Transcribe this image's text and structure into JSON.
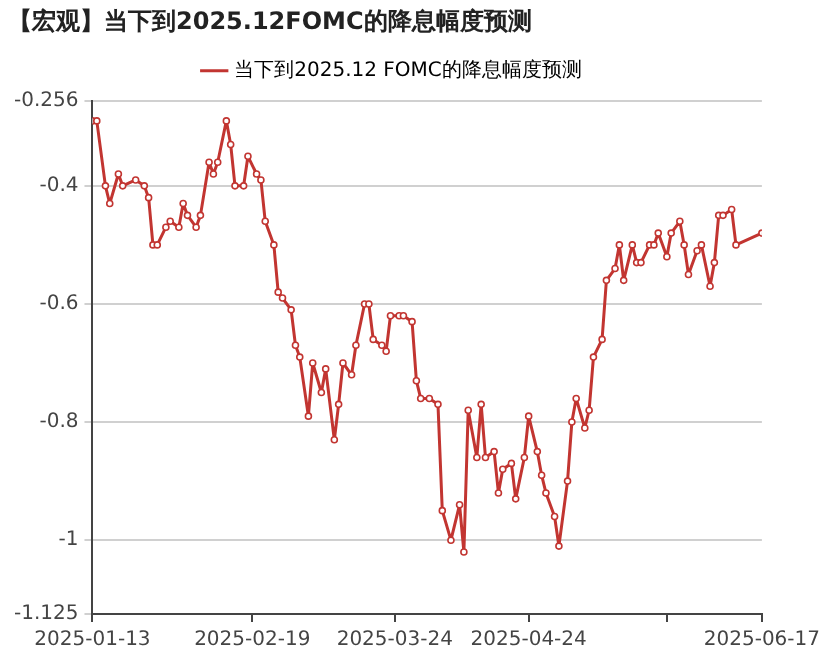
{
  "chart_data": {
    "type": "line",
    "title": "【宏观】当下到2025.12FOMC的降息幅度预测",
    "x": [
      "2025-01-13",
      "2025-01-14",
      "2025-01-16",
      "2025-01-17",
      "2025-01-19",
      "2025-01-20",
      "2025-01-23",
      "2025-01-25",
      "2025-01-26",
      "2025-01-27",
      "2025-01-28",
      "2025-01-30",
      "2025-01-31",
      "2025-02-02",
      "2025-02-03",
      "2025-02-04",
      "2025-02-06",
      "2025-02-07",
      "2025-02-09",
      "2025-02-10",
      "2025-02-11",
      "2025-02-13",
      "2025-02-14",
      "2025-02-15",
      "2025-02-17",
      "2025-02-18",
      "2025-02-20",
      "2025-02-21",
      "2025-02-22",
      "2025-02-24",
      "2025-02-25",
      "2025-02-26",
      "2025-02-28",
      "2025-03-01",
      "2025-03-02",
      "2025-03-04",
      "2025-03-05",
      "2025-03-07",
      "2025-03-08",
      "2025-03-10",
      "2025-03-11",
      "2025-03-12",
      "2025-03-14",
      "2025-03-15",
      "2025-03-17",
      "2025-03-18",
      "2025-03-19",
      "2025-03-21",
      "2025-03-22",
      "2025-03-23",
      "2025-03-25",
      "2025-03-26",
      "2025-03-28",
      "2025-03-29",
      "2025-03-30",
      "2025-04-01",
      "2025-04-03",
      "2025-04-04",
      "2025-04-06",
      "2025-04-08",
      "2025-04-09",
      "2025-04-10",
      "2025-04-12",
      "2025-04-13",
      "2025-04-14",
      "2025-04-16",
      "2025-04-17",
      "2025-04-18",
      "2025-04-20",
      "2025-04-21",
      "2025-04-23",
      "2025-04-24",
      "2025-04-26",
      "2025-04-27",
      "2025-04-28",
      "2025-04-30",
      "2025-05-01",
      "2025-05-03",
      "2025-05-04",
      "2025-05-05",
      "2025-05-07",
      "2025-05-08",
      "2025-05-09",
      "2025-05-11",
      "2025-05-12",
      "2025-05-14",
      "2025-05-15",
      "2025-05-16",
      "2025-05-18",
      "2025-05-19",
      "2025-05-20",
      "2025-05-22",
      "2025-05-23",
      "2025-05-24",
      "2025-05-26",
      "2025-05-27",
      "2025-05-29",
      "2025-05-30",
      "2025-05-31",
      "2025-06-02",
      "2025-06-03",
      "2025-06-05",
      "2025-06-06",
      "2025-06-07",
      "2025-06-08",
      "2025-06-10",
      "2025-06-11",
      "2025-06-17"
    ],
    "series": [
      {
        "name": "当下到2025.12 FOMC的降息幅度预测",
        "color": "#c23531",
        "values": [
          -0.29,
          -0.29,
          -0.4,
          -0.43,
          -0.38,
          -0.4,
          -0.39,
          -0.4,
          -0.42,
          -0.5,
          -0.5,
          -0.47,
          -0.46,
          -0.47,
          -0.43,
          -0.45,
          -0.47,
          -0.45,
          -0.36,
          -0.38,
          -0.36,
          -0.29,
          -0.33,
          -0.4,
          -0.4,
          -0.35,
          -0.38,
          -0.39,
          -0.46,
          -0.5,
          -0.58,
          -0.59,
          -0.61,
          -0.67,
          -0.69,
          -0.79,
          -0.7,
          -0.75,
          -0.71,
          -0.83,
          -0.77,
          -0.7,
          -0.72,
          -0.67,
          -0.6,
          -0.6,
          -0.66,
          -0.67,
          -0.68,
          -0.62,
          -0.62,
          -0.62,
          -0.63,
          -0.73,
          -0.76,
          -0.76,
          -0.77,
          -0.95,
          -1,
          -0.94,
          -1.02,
          -0.78,
          -0.86,
          -0.77,
          -0.86,
          -0.85,
          -0.92,
          -0.88,
          -0.87,
          -0.93,
          -0.86,
          -0.79,
          -0.85,
          -0.89,
          -0.92,
          -0.96,
          -1.01,
          -0.9,
          -0.8,
          -0.76,
          -0.81,
          -0.78,
          -0.69,
          -0.66,
          -0.56,
          -0.54,
          -0.5,
          -0.56,
          -0.5,
          -0.53,
          -0.53,
          -0.5,
          -0.5,
          -0.48,
          -0.52,
          -0.48,
          -0.46,
          -0.5,
          -0.55,
          -0.51,
          -0.5,
          -0.57,
          -0.53,
          -0.45,
          -0.45,
          -0.44,
          -0.5,
          -0.48
        ]
      }
    ],
    "xlim": [
      "2025-01-13",
      "2025-06-17"
    ],
    "xticks": [
      "2025-01-13",
      "2025-02-19",
      "2025-03-24",
      "2025-04-24",
      {
        "value": "2025-05-26",
        "label": null
      },
      "2025-06-17"
    ],
    "ylim": [
      -1.125,
      -0.256
    ],
    "yticks": [
      -1.125,
      -1,
      -0.8,
      -0.6,
      -0.4,
      -0.256
    ],
    "grid": "y",
    "legend": "top",
    "marker": "circle",
    "line_style": "solid"
  }
}
